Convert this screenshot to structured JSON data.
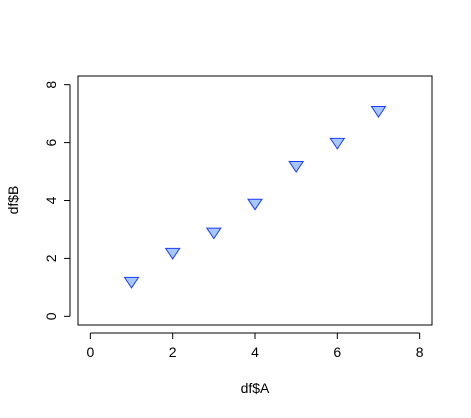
{
  "chart_data": {
    "type": "scatter",
    "title": "",
    "xlabel": "df$A",
    "ylabel": "df$B",
    "xlim": [
      -0.3,
      8.3
    ],
    "ylim": [
      -0.3,
      8.3
    ],
    "x_ticks": [
      0,
      2,
      4,
      6,
      8
    ],
    "y_ticks": [
      0,
      2,
      4,
      6,
      8
    ],
    "grid": false,
    "marker": "down-triangle",
    "marker_fill": "#a6c8ff",
    "marker_stroke": "#1a3cff",
    "series": [
      {
        "x": [
          1,
          2,
          3,
          4,
          5,
          6,
          7
        ],
        "y": [
          1.2,
          2.2,
          2.9,
          3.9,
          5.2,
          6.0,
          7.1
        ]
      }
    ]
  }
}
